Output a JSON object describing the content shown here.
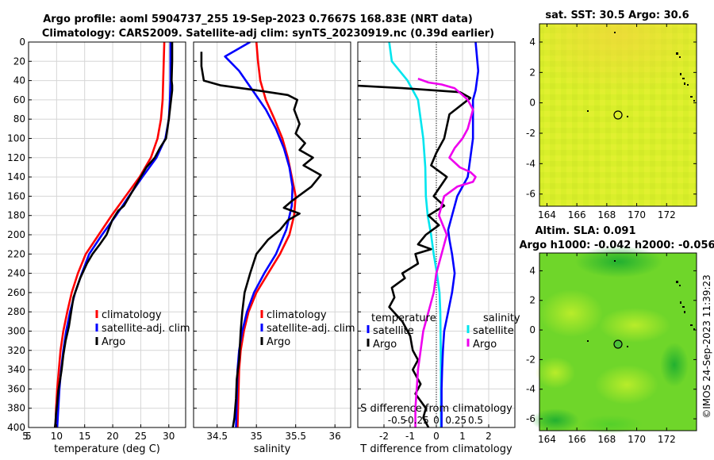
{
  "titles": {
    "line1": "Argo profile: aoml 5904737_255 19-Sep-2023 0.7667S 168.83E (NRT data)",
    "line2": "Climatology: CARS2009. Satellite-adj clim: synTS_20230919.nc (0.39d earlier)",
    "sst_title": "sat. SST: 30.5 Argo: 30.6",
    "sla_title1": "Altim. SLA: 0.091",
    "sla_title2": "Argo h1000: -0.042 h2000: -0.056",
    "credit": "©IMOS 24-Sep-2023 11:39:23"
  },
  "colors": {
    "climatology": "#ff0000",
    "satellite": "#0000ff",
    "argo": "#000000",
    "t_sat": "#00e5ee",
    "s_clim": "#ee00ee",
    "s_sat": "#00e5ee"
  },
  "chart_data": [
    {
      "type": "line",
      "panel": "temperature",
      "xlabel": "temperature (deg C)",
      "ylabel": "depth",
      "xlim": [
        5,
        33
      ],
      "ylim": [
        0,
        400
      ],
      "xticks": [
        5,
        10,
        15,
        20,
        25,
        30
      ],
      "yticks": [
        0,
        20,
        40,
        60,
        80,
        100,
        120,
        140,
        160,
        180,
        200,
        220,
        240,
        260,
        280,
        300,
        320,
        340,
        360,
        380,
        400
      ],
      "legend": [
        "climatology",
        "satellite-adj. clim",
        "Argo"
      ],
      "series": [
        {
          "name": "climatology",
          "color": "#ff0000",
          "x": [
            29.2,
            29.1,
            29.0,
            28.9,
            28.6,
            28.0,
            26.8,
            24.8,
            22.3,
            19.8,
            17.5,
            15.2,
            13.8,
            12.7,
            11.9,
            11.2,
            10.7,
            10.4,
            10.1,
            9.9,
            9.8
          ],
          "y": [
            0,
            20,
            40,
            60,
            80,
            100,
            120,
            140,
            160,
            180,
            200,
            220,
            240,
            260,
            280,
            300,
            320,
            340,
            360,
            380,
            400
          ]
        },
        {
          "name": "satellite-adj. clim",
          "color": "#0000ff",
          "x": [
            30.3,
            30.3,
            30.3,
            30.2,
            30.0,
            29.4,
            27.8,
            25.3,
            22.9,
            20.6,
            18.1,
            15.8,
            14.5,
            13.3,
            12.4,
            11.7,
            11.2,
            10.8,
            10.5,
            10.3,
            10.1
          ],
          "y": [
            0,
            20,
            40,
            60,
            80,
            100,
            120,
            140,
            160,
            180,
            200,
            220,
            240,
            260,
            280,
            300,
            320,
            340,
            360,
            380,
            400
          ]
        },
        {
          "name": "Argo",
          "color": "#000000",
          "x": [
            30.6,
            30.6,
            30.5,
            30.6,
            30.6,
            30.0,
            29.5,
            28.4,
            27.5,
            26.0,
            25.0,
            24.0,
            23.0,
            22.0,
            21.0,
            19.9,
            18.9,
            17.7,
            16.4,
            15.4,
            14.2,
            13.0,
            12.6,
            12.2,
            11.6,
            11.2,
            10.9,
            10.5,
            10.3,
            10.1,
            9.9,
            9.8,
            9.7,
            9.6,
            9.6
          ],
          "y": [
            0,
            20,
            40,
            45,
            50,
            80,
            100,
            110,
            120,
            130,
            140,
            150,
            160,
            170,
            175,
            185,
            200,
            210,
            220,
            230,
            245,
            265,
            280,
            295,
            310,
            325,
            340,
            355,
            362,
            375,
            385,
            395,
            400,
            400,
            400
          ]
        }
      ]
    },
    {
      "type": "line",
      "panel": "salinity",
      "xlabel": "salinity",
      "xlim": [
        34.2,
        36.2
      ],
      "xticks": [
        34.5,
        35,
        35.5,
        36
      ],
      "legend": [
        "climatology",
        "satellite-adj. clim",
        "Argo"
      ],
      "series": [
        {
          "name": "climatology",
          "color": "#ff0000",
          "x": [
            35.0,
            35.02,
            35.05,
            35.12,
            35.23,
            35.33,
            35.4,
            35.45,
            35.5,
            35.48,
            35.42,
            35.3,
            35.15,
            35.0,
            34.9,
            34.84,
            34.8,
            34.78,
            34.77,
            34.76
          ],
          "y": [
            0,
            20,
            40,
            60,
            80,
            100,
            120,
            140,
            160,
            180,
            200,
            220,
            240,
            260,
            280,
            300,
            320,
            340,
            370,
            400
          ]
        },
        {
          "name": "satellite-adj. clim",
          "color": "#0000ff",
          "x": [
            34.92,
            34.6,
            34.78,
            34.95,
            35.12,
            35.25,
            35.35,
            35.42,
            35.46,
            35.45,
            35.38,
            35.25,
            35.1,
            34.97,
            34.88,
            34.82,
            34.78,
            34.76,
            34.75,
            34.74
          ],
          "y": [
            0,
            15,
            30,
            50,
            70,
            90,
            110,
            130,
            150,
            170,
            195,
            220,
            240,
            260,
            280,
            300,
            320,
            340,
            370,
            400
          ]
        },
        {
          "name": "Argo",
          "color": "#000000",
          "x": [
            34.3,
            34.3,
            34.33,
            34.55,
            35.0,
            35.4,
            35.52,
            35.48,
            35.55,
            35.5,
            35.62,
            35.55,
            35.72,
            35.6,
            35.82,
            35.7,
            35.45,
            35.35,
            35.55,
            35.4,
            35.3,
            35.15,
            35.0,
            34.92,
            34.85,
            34.82,
            34.8,
            34.78,
            34.75,
            34.74,
            34.72,
            34.7
          ],
          "y": [
            10,
            25,
            40,
            45,
            50,
            55,
            60,
            70,
            85,
            95,
            105,
            112,
            120,
            128,
            138,
            150,
            165,
            172,
            178,
            185,
            195,
            205,
            220,
            240,
            260,
            280,
            300,
            330,
            350,
            370,
            390,
            400
          ]
        }
      ]
    },
    {
      "type": "line",
      "panel": "difference",
      "xlabel": "T difference from climatology",
      "xlabel2": "S difference from climatology",
      "xlim": [
        -3,
        3
      ],
      "xticks": [
        -2,
        -1,
        0,
        1,
        2
      ],
      "x2lim": [
        -1,
        1
      ],
      "x2ticks": [
        -0.5,
        -0.25,
        0,
        0.25,
        0.5
      ],
      "legend": [
        "temperature",
        "satellite",
        "Argo",
        "salinity",
        "satellite",
        "Argo"
      ],
      "series": [
        {
          "name": "T satellite",
          "color": "#00e5ee",
          "x": [
            -1.8,
            -1.7,
            -1.1,
            -0.7,
            -0.6,
            -0.5,
            -0.42,
            -0.4,
            -0.33,
            -0.2,
            -0.1,
            0.02,
            0.12,
            0.15,
            0.17,
            0.18,
            0.18
          ],
          "y": [
            0,
            20,
            40,
            60,
            80,
            100,
            130,
            160,
            180,
            200,
            220,
            240,
            260,
            280,
            320,
            360,
            400
          ]
        },
        {
          "name": "T Argo",
          "color": "#000000",
          "x": [
            -3.2,
            -1.2,
            0.9,
            1.3,
            0.5,
            0.3,
            0.0,
            -0.2,
            0.4,
            -0.1,
            0.3,
            -0.3,
            0.1,
            -0.4,
            -0.7,
            -0.2,
            -0.8,
            -0.7,
            -1.3,
            -1.2,
            -1.7,
            -1.6,
            -1.8,
            -1.3,
            -1.0,
            -0.9,
            -0.7,
            -0.9,
            -0.6,
            -0.8,
            -0.4,
            -0.5,
            -0.3
          ],
          "y": [
            45,
            48,
            52,
            58,
            75,
            100,
            115,
            128,
            140,
            160,
            170,
            180,
            190,
            200,
            210,
            215,
            220,
            230,
            240,
            245,
            255,
            265,
            275,
            290,
            305,
            320,
            330,
            340,
            355,
            365,
            380,
            390,
            400
          ]
        },
        {
          "name": "S satellite",
          "color": "#0000ff",
          "x": [
            1.5,
            1.6,
            1.5,
            1.4,
            1.4,
            1.3,
            1.2,
            0.8,
            0.6,
            0.45,
            0.5,
            0.6,
            0.7,
            0.6,
            0.45,
            0.3,
            0.25,
            0.22,
            0.2,
            0.2,
            0.2
          ],
          "y": [
            0,
            30,
            50,
            60,
            100,
            120,
            140,
            160,
            180,
            195,
            205,
            220,
            240,
            260,
            280,
            300,
            320,
            340,
            360,
            380,
            400
          ]
        },
        {
          "name": "S Argo",
          "color": "#ee00ee",
          "x": [
            -0.7,
            -0.3,
            0.2,
            0.7,
            1.0,
            1.2,
            1.4,
            1.2,
            1.0,
            0.7,
            0.5,
            0.9,
            1.3,
            1.5,
            1.4,
            0.8,
            0.3,
            0.1,
            0.4,
            0.2,
            0.0,
            -0.1,
            -0.3,
            -0.5,
            -0.6,
            -0.7,
            -0.75,
            -0.8,
            -0.8
          ],
          "y": [
            38,
            42,
            44,
            48,
            55,
            60,
            70,
            90,
            100,
            110,
            120,
            130,
            135,
            140,
            145,
            150,
            160,
            180,
            200,
            220,
            240,
            260,
            280,
            300,
            320,
            340,
            360,
            380,
            400
          ]
        }
      ]
    },
    {
      "type": "heatmap",
      "panel": "sat. SST",
      "xlim": [
        163.5,
        174
      ],
      "ylim": [
        -6.8,
        5.2
      ],
      "xticks": [
        164,
        166,
        168,
        170,
        172
      ],
      "yticks": [
        -6,
        -4,
        -2,
        0,
        2,
        4
      ],
      "argo_position": [
        168.83,
        -0.77
      ]
    },
    {
      "type": "heatmap",
      "panel": "Altim. SLA",
      "xlim": [
        163.5,
        174
      ],
      "ylim": [
        -6.8,
        5.2
      ],
      "xticks": [
        164,
        166,
        168,
        170,
        172
      ],
      "yticks": [
        -6,
        -4,
        -2,
        0,
        2,
        4
      ],
      "argo_position": [
        168.83,
        -0.77
      ]
    }
  ]
}
